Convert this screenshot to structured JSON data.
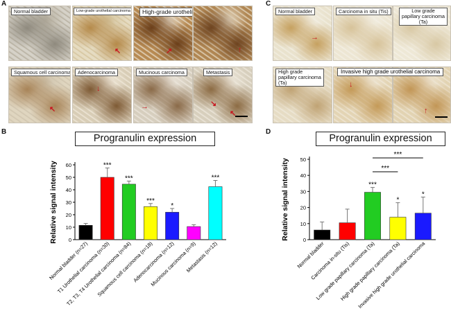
{
  "panels": {
    "A": {
      "letter": "A",
      "tiles": [
        {
          "label": "Normal bladder",
          "colors": [
            "#d6d2c8",
            "#8f8a7e",
            "#b5ae9e"
          ]
        },
        {
          "label": "Low-grade urothelial carcinoma",
          "colors": [
            "#e6dcc2",
            "#b58a4a",
            "#d4c39c"
          ]
        },
        {
          "label": "High-grade urothelial carcinoma",
          "colors": [
            "#b78a52",
            "#6b3f1a",
            "#e6dac6"
          ]
        },
        {
          "label": "",
          "colors": [
            "#b08652",
            "#6e4420",
            "#e3d6bf"
          ]
        },
        {
          "label": "Squamous cell carcinoma",
          "colors": [
            "#e0d6c0",
            "#a88458",
            "#cfc4ae"
          ]
        },
        {
          "label": "Adenocarcinoma",
          "colors": [
            "#d8cdb6",
            "#7e5a34",
            "#efe7d8"
          ]
        },
        {
          "label": "Mucinous carcinoma",
          "colors": [
            "#d6cebe",
            "#8a6a48",
            "#ece6dc"
          ]
        },
        {
          "label": "Metastasis",
          "colors": [
            "#d7cfbd",
            "#8c6b43",
            "#eee8dc"
          ]
        }
      ]
    },
    "C": {
      "letter": "C",
      "tiles": [
        {
          "label": "Normal bladder",
          "colors": [
            "#e9e2cd",
            "#c6a160",
            "#f2eee2"
          ]
        },
        {
          "label": "Carcinoma in situ (Tis)",
          "colors": [
            "#ede6d3",
            "#d7c39a",
            "#f3efe4"
          ]
        },
        {
          "label": "Low grade papillary carcinoma (Ta)",
          "colors": [
            "#eee8d6",
            "#d8c8a4",
            "#f4f0e6"
          ]
        },
        {
          "label": "High grade papillary carcinoma (Ta)",
          "colors": [
            "#e6dcc4",
            "#c0a374",
            "#efe9da"
          ]
        },
        {
          "label": "Invasive high grade urothelial carcinoma",
          "colors": [
            "#e3d4b4",
            "#c49a58",
            "#efe7d6"
          ]
        },
        {
          "label": "",
          "colors": [
            "#e2d3b2",
            "#c29656",
            "#eee5d3"
          ]
        }
      ]
    },
    "B": {
      "letter": "B"
    },
    "D": {
      "letter": "D"
    }
  },
  "chart_data": [
    {
      "type": "bar",
      "title": "Progranulin expression",
      "ylabel": "Relative signal intensity",
      "xlabel": "",
      "ylim": [
        0,
        60
      ],
      "yticks": [
        0,
        10,
        20,
        30,
        40,
        50,
        60
      ],
      "categories": [
        "Normal bladder (n=27)",
        "T1 Urothelial carcinoma (n=30)",
        "T2, T3, T4 Urothelial carcinoma (n=84)",
        "Squamous cell carcinoma (n=18)",
        "Adenocarcinoma (n=12)",
        "Mucinous carcinoma (n=9)",
        "Metastasis (n=12)"
      ],
      "values": [
        11.5,
        50,
        44.5,
        26.5,
        22,
        10.5,
        42.5
      ],
      "errors": [
        1.5,
        7.5,
        2.5,
        2.5,
        3,
        1.5,
        5
      ],
      "significance": [
        "",
        "***",
        "***",
        "***",
        "*",
        "",
        "***"
      ],
      "colors": [
        "#000000",
        "#ff0000",
        "#22cc22",
        "#ffff00",
        "#1a1aff",
        "#ff00ff",
        "#00ffff"
      ],
      "grid": false
    },
    {
      "type": "bar",
      "title": "Progranulin expression",
      "ylabel": "Relative signal intensity",
      "xlabel": "",
      "ylim": [
        0,
        50
      ],
      "yticks": [
        0,
        10,
        20,
        30,
        40,
        50
      ],
      "categories": [
        "Normal bladder",
        "Carcinoma in-situ (Tis)",
        "Low grade papillary carcinoma (Ta)",
        "High grade papillary carcinoma (Ta)",
        "Invasive high grade urothelial carcinoma"
      ],
      "values": [
        6,
        10.5,
        29.5,
        14,
        16.5
      ],
      "errors": [
        5,
        8.5,
        3,
        9,
        10
      ],
      "significance": [
        "",
        "",
        "***",
        "*",
        "*"
      ],
      "brackets": [
        {
          "from": 2,
          "to": 3,
          "label": "***"
        },
        {
          "from": 2,
          "to": 4,
          "label": "***"
        }
      ],
      "colors": [
        "#000000",
        "#ff0000",
        "#22cc22",
        "#ffff00",
        "#1a1aff"
      ],
      "grid": false
    }
  ]
}
